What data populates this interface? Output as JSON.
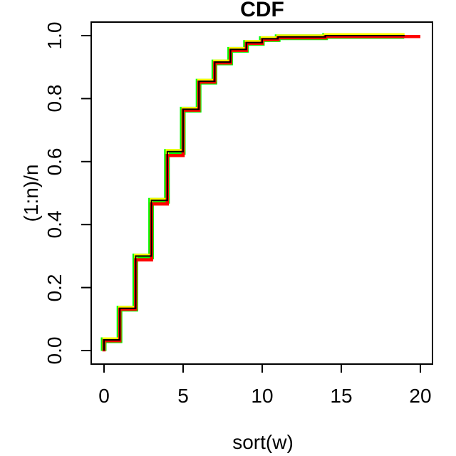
{
  "title": "CDF",
  "axes": {
    "x": {
      "label": "sort(w)",
      "tick_labels": [
        "0",
        "5",
        "10",
        "15",
        "20"
      ],
      "tick_values": [
        0,
        5,
        10,
        15,
        20
      ]
    },
    "y": {
      "label": "(1:n)/n",
      "tick_labels": [
        "0.0",
        "0.2",
        "0.4",
        "0.6",
        "0.8",
        "1.0"
      ],
      "tick_values": [
        0,
        0.2,
        0.4,
        0.6,
        0.8,
        1.0
      ]
    }
  },
  "chart_data": {
    "type": "line",
    "step": true,
    "title": "CDF",
    "xlabel": "sort(w)",
    "ylabel": "(1:n)/n",
    "xlim": [
      0,
      20
    ],
    "ylim": [
      0,
      1
    ],
    "grid": false,
    "legend": false,
    "series": [
      {
        "name": "green-cdf",
        "color": "#00FF00",
        "width": 8,
        "dx": -0.5,
        "dy": 0.5,
        "points": [
          [
            0,
            0
          ],
          [
            0,
            0.034
          ],
          [
            1,
            0.034
          ],
          [
            1,
            0.134
          ],
          [
            2,
            0.134
          ],
          [
            2,
            0.3
          ],
          [
            3,
            0.3
          ],
          [
            3,
            0.477
          ],
          [
            4,
            0.477
          ],
          [
            4,
            0.632
          ],
          [
            5,
            0.632
          ],
          [
            5,
            0.766
          ],
          [
            6,
            0.766
          ],
          [
            6,
            0.855
          ],
          [
            7,
            0.855
          ],
          [
            7,
            0.916
          ],
          [
            8,
            0.916
          ],
          [
            8,
            0.956
          ],
          [
            9,
            0.956
          ],
          [
            9,
            0.978
          ],
          [
            10,
            0.978
          ],
          [
            10,
            0.99
          ],
          [
            11,
            0.99
          ],
          [
            11,
            0.996
          ],
          [
            14,
            0.996
          ],
          [
            14,
            1.0
          ],
          [
            19,
            1.0
          ]
        ]
      },
      {
        "name": "yellow-cdf",
        "color": "#FFFF00",
        "width": 4.5,
        "dx": 0,
        "dy": -1.2,
        "points": [
          [
            0,
            0
          ],
          [
            0,
            0.034
          ],
          [
            1,
            0.034
          ],
          [
            1,
            0.134
          ],
          [
            2,
            0.134
          ],
          [
            2,
            0.3
          ],
          [
            3,
            0.3
          ],
          [
            3,
            0.477
          ],
          [
            4,
            0.477
          ],
          [
            4,
            0.632
          ],
          [
            5,
            0.632
          ],
          [
            5,
            0.766
          ],
          [
            6,
            0.766
          ],
          [
            6,
            0.855
          ],
          [
            7,
            0.855
          ],
          [
            7,
            0.916
          ],
          [
            8,
            0.916
          ],
          [
            8,
            0.956
          ],
          [
            9,
            0.956
          ],
          [
            9,
            0.978
          ],
          [
            10,
            0.978
          ],
          [
            10,
            0.99
          ],
          [
            11,
            0.99
          ],
          [
            11,
            0.996
          ],
          [
            14,
            0.996
          ],
          [
            14,
            1.0
          ],
          [
            19,
            1.0
          ]
        ]
      },
      {
        "name": "red-cdf",
        "color": "#FF0000",
        "width": 4.5,
        "dx": 0,
        "dy": 1.2,
        "points": [
          [
            0,
            0
          ],
          [
            0,
            0.034
          ],
          [
            1,
            0.034
          ],
          [
            1,
            0.134
          ],
          [
            2,
            0.134
          ],
          [
            2,
            0.291
          ],
          [
            3,
            0.291
          ],
          [
            3,
            0.468
          ],
          [
            4,
            0.468
          ],
          [
            4,
            0.622
          ],
          [
            5,
            0.622
          ],
          [
            5,
            0.766
          ],
          [
            6,
            0.766
          ],
          [
            6,
            0.855
          ],
          [
            7,
            0.855
          ],
          [
            7,
            0.916
          ],
          [
            8,
            0.916
          ],
          [
            8,
            0.956
          ],
          [
            9,
            0.956
          ],
          [
            9,
            0.978
          ],
          [
            10,
            0.978
          ],
          [
            10,
            0.99
          ],
          [
            11,
            0.99
          ],
          [
            11,
            0.996
          ],
          [
            14,
            0.996
          ],
          [
            14,
            1.0
          ],
          [
            20,
            1.0
          ]
        ]
      },
      {
        "name": "black-empirical-cdf",
        "color": "#000000",
        "width": 2,
        "dx": 0,
        "dy": 0,
        "points": [
          [
            0,
            0
          ],
          [
            0,
            0.034
          ],
          [
            1,
            0.034
          ],
          [
            1,
            0.134
          ],
          [
            2,
            0.134
          ],
          [
            2,
            0.3
          ],
          [
            3,
            0.3
          ],
          [
            3,
            0.477
          ],
          [
            4,
            0.477
          ],
          [
            4,
            0.632
          ],
          [
            5,
            0.632
          ],
          [
            5,
            0.766
          ],
          [
            6,
            0.766
          ],
          [
            6,
            0.855
          ],
          [
            7,
            0.855
          ],
          [
            7,
            0.916
          ],
          [
            8,
            0.916
          ],
          [
            8,
            0.956
          ],
          [
            9,
            0.956
          ],
          [
            9,
            0.978
          ],
          [
            10,
            0.978
          ],
          [
            10,
            0.99
          ],
          [
            11,
            0.99
          ],
          [
            11,
            0.996
          ],
          [
            14,
            0.996
          ],
          [
            14,
            1.0
          ],
          [
            19,
            1.0
          ]
        ]
      }
    ]
  }
}
